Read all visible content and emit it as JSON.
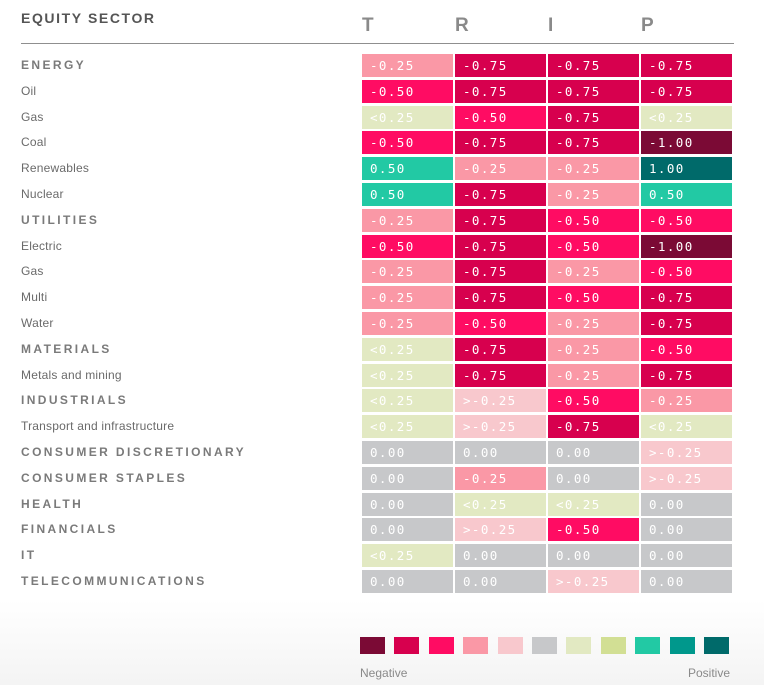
{
  "title": "EQUITY SECTOR",
  "columns": [
    "T",
    "R",
    "I",
    "P"
  ],
  "colors": {
    "-1.00": "#7b0a35",
    "-0.75": "#d7004e",
    "-0.50": "#ff0c63",
    "-0.25": "#fa98a6",
    ">-0.25": "#f8c8cd",
    "0.00": "#c7c8ca",
    "<0.25": "#e2e9c2",
    "0.25": "#d2df94",
    "0.50": "#22c9a4",
    "0.75": "#00988c",
    "1.00": "#006a6a"
  },
  "legend": {
    "left_label": "Negative",
    "right_label": "Positive",
    "scale": [
      "-1.00",
      "-0.75",
      "-0.50",
      "-0.25",
      ">-0.25",
      "0.00",
      "<0.25",
      "0.25",
      "0.50",
      "0.75",
      "1.00"
    ]
  },
  "chart_data": {
    "type": "heatmap",
    "title": "",
    "row_header": "EQUITY SECTOR",
    "columns": [
      "T",
      "R",
      "I",
      "P"
    ],
    "rows": [
      {
        "label": "ENERGY",
        "kind": "sector",
        "values": [
          "-0.25",
          "-0.75",
          "-0.75",
          "-0.75"
        ]
      },
      {
        "label": "Oil",
        "kind": "sub",
        "values": [
          "-0.50",
          "-0.75",
          "-0.75",
          "-0.75"
        ]
      },
      {
        "label": "Gas",
        "kind": "sub",
        "values": [
          "<0.25",
          "-0.50",
          "-0.75",
          "<0.25"
        ]
      },
      {
        "label": "Coal",
        "kind": "sub",
        "values": [
          "-0.50",
          "-0.75",
          "-0.75",
          "-1.00"
        ]
      },
      {
        "label": "Renewables",
        "kind": "sub",
        "values": [
          "0.50",
          "-0.25",
          "-0.25",
          "1.00"
        ]
      },
      {
        "label": "Nuclear",
        "kind": "sub",
        "values": [
          "0.50",
          "-0.75",
          "-0.25",
          "0.50"
        ]
      },
      {
        "label": "UTILITIES",
        "kind": "sector",
        "values": [
          "-0.25",
          "-0.75",
          "-0.50",
          "-0.50"
        ]
      },
      {
        "label": "Electric",
        "kind": "sub",
        "values": [
          "-0.50",
          "-0.75",
          "-0.50",
          "-1.00"
        ]
      },
      {
        "label": "Gas",
        "kind": "sub",
        "values": [
          "-0.25",
          "-0.75",
          "-0.25",
          "-0.50"
        ]
      },
      {
        "label": "Multi",
        "kind": "sub",
        "values": [
          "-0.25",
          "-0.75",
          "-0.50",
          "-0.75"
        ]
      },
      {
        "label": "Water",
        "kind": "sub",
        "values": [
          "-0.25",
          "-0.50",
          "-0.25",
          "-0.75"
        ]
      },
      {
        "label": "MATERIALS",
        "kind": "sector",
        "values": [
          "<0.25",
          "-0.75",
          "-0.25",
          "-0.50"
        ]
      },
      {
        "label": "Metals and mining",
        "kind": "sub",
        "values": [
          "<0.25",
          "-0.75",
          "-0.25",
          "-0.75"
        ]
      },
      {
        "label": "INDUSTRIALS",
        "kind": "sector",
        "values": [
          "<0.25",
          ">-0.25",
          "-0.50",
          "-0.25"
        ]
      },
      {
        "label": "Transport and infrastructure",
        "kind": "sub",
        "values": [
          "<0.25",
          ">-0.25",
          "-0.75",
          "<0.25"
        ]
      },
      {
        "label": "CONSUMER DISCRETIONARY",
        "kind": "sector",
        "values": [
          "0.00",
          "0.00",
          "0.00",
          ">-0.25"
        ]
      },
      {
        "label": "CONSUMER STAPLES",
        "kind": "sector",
        "values": [
          "0.00",
          "-0.25",
          "0.00",
          ">-0.25"
        ]
      },
      {
        "label": "HEALTH",
        "kind": "sector",
        "values": [
          "0.00",
          "<0.25",
          "<0.25",
          "0.00"
        ]
      },
      {
        "label": "FINANCIALS",
        "kind": "sector",
        "values": [
          "0.00",
          ">-0.25",
          "-0.50",
          "0.00"
        ]
      },
      {
        "label": "IT",
        "kind": "sector",
        "values": [
          "<0.25",
          "0.00",
          "0.00",
          "0.00"
        ]
      },
      {
        "label": "TELECOMMUNICATIONS",
        "kind": "sector",
        "values": [
          "0.00",
          "0.00",
          ">-0.25",
          "0.00"
        ]
      }
    ]
  }
}
